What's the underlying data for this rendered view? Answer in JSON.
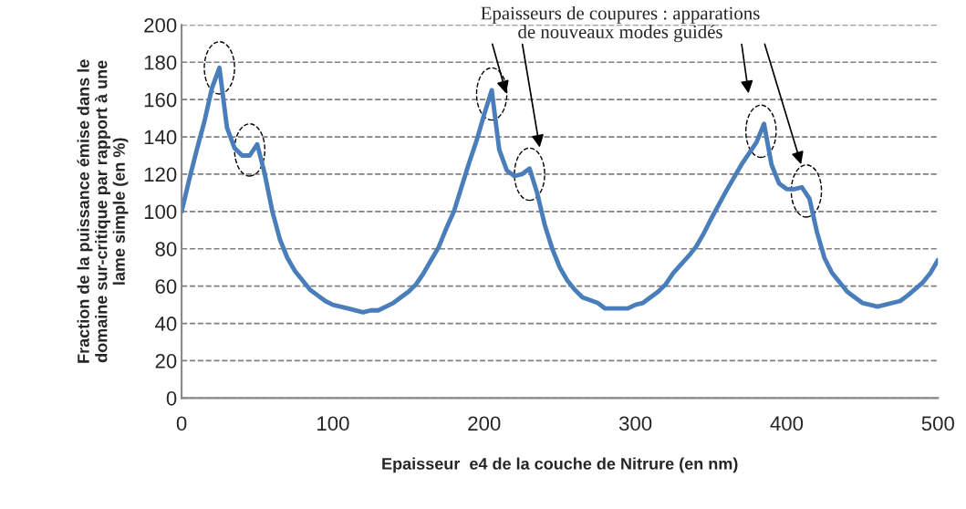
{
  "chart_data": {
    "type": "line",
    "xlabel": "Epaisseur  e4 de la couche de Nitrure (en nm)",
    "ylabel": "Fraction de la puissance émise dans le\ndomaine sur-critique par rapport à une\nlame simple (en %)",
    "annotations": [
      "Epaisseurs de coupures : apparations\nde nouveaux modes guidés"
    ],
    "x": [
      0,
      5,
      10,
      15,
      20,
      25,
      30,
      35,
      40,
      45,
      50,
      55,
      60,
      65,
      70,
      75,
      80,
      85,
      90,
      95,
      100,
      110,
      120,
      125,
      130,
      140,
      150,
      155,
      160,
      165,
      170,
      175,
      180,
      185,
      190,
      195,
      200,
      205,
      210,
      215,
      220,
      225,
      230,
      235,
      240,
      245,
      250,
      255,
      260,
      265,
      275,
      280,
      295,
      300,
      305,
      315,
      320,
      325,
      335,
      340,
      345,
      350,
      360,
      370,
      380,
      385,
      390,
      395,
      400,
      405,
      410,
      415,
      420,
      425,
      430,
      435,
      440,
      445,
      450,
      460,
      475,
      480,
      490,
      495,
      500
    ],
    "series": [
      {
        "color": "#4a7ebb",
        "values": [
          100,
          117,
          133,
          148,
          166,
          177,
          145,
          134,
          130,
          130,
          136,
          120,
          100,
          85,
          75,
          68,
          63,
          58,
          55,
          52,
          50,
          48,
          46,
          47,
          47,
          51,
          57,
          61,
          67,
          74,
          81,
          91,
          100,
          113,
          126,
          138,
          152,
          165,
          133,
          122,
          119,
          120,
          123,
          110,
          93,
          80,
          70,
          63,
          58,
          54,
          51,
          48,
          48,
          50,
          51,
          57,
          61,
          67,
          76,
          81,
          88,
          96,
          111,
          125,
          137,
          147,
          125,
          115,
          112,
          112,
          113,
          107,
          89,
          75,
          67,
          62,
          57,
          54,
          51,
          49,
          52,
          55,
          62,
          67,
          74
        ]
      }
    ],
    "xlim": [
      0,
      500
    ],
    "xticks": [
      0,
      100,
      200,
      300,
      400,
      500
    ],
    "ylim": [
      0,
      200
    ],
    "yticks": [
      0,
      20,
      40,
      60,
      80,
      100,
      120,
      140,
      160,
      180,
      200
    ],
    "grid": "y",
    "legend": false,
    "marker": "none",
    "line_style": "solid"
  }
}
